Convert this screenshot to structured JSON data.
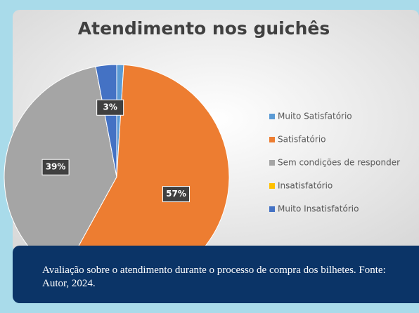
{
  "chart_data": {
    "type": "pie",
    "title": "Atendimento nos guichês",
    "categories": [
      "Muito Satisfatório",
      "Satisfatório",
      "Sem condições de responder",
      "Insatisfatório",
      "Muito Insatisfatório"
    ],
    "values": [
      1,
      57,
      39,
      0,
      3
    ],
    "value_labels": [
      null,
      "57%",
      "39%",
      null,
      "3%"
    ],
    "colors": [
      "#5b9bd5",
      "#ed7d31",
      "#a5a5a5",
      "#ffc000",
      "#4472c4"
    ],
    "legend": "right"
  },
  "caption": "Avaliação sobre o atendimento durante o processo de compra dos bilhetes. Fonte: Autor, 2024."
}
